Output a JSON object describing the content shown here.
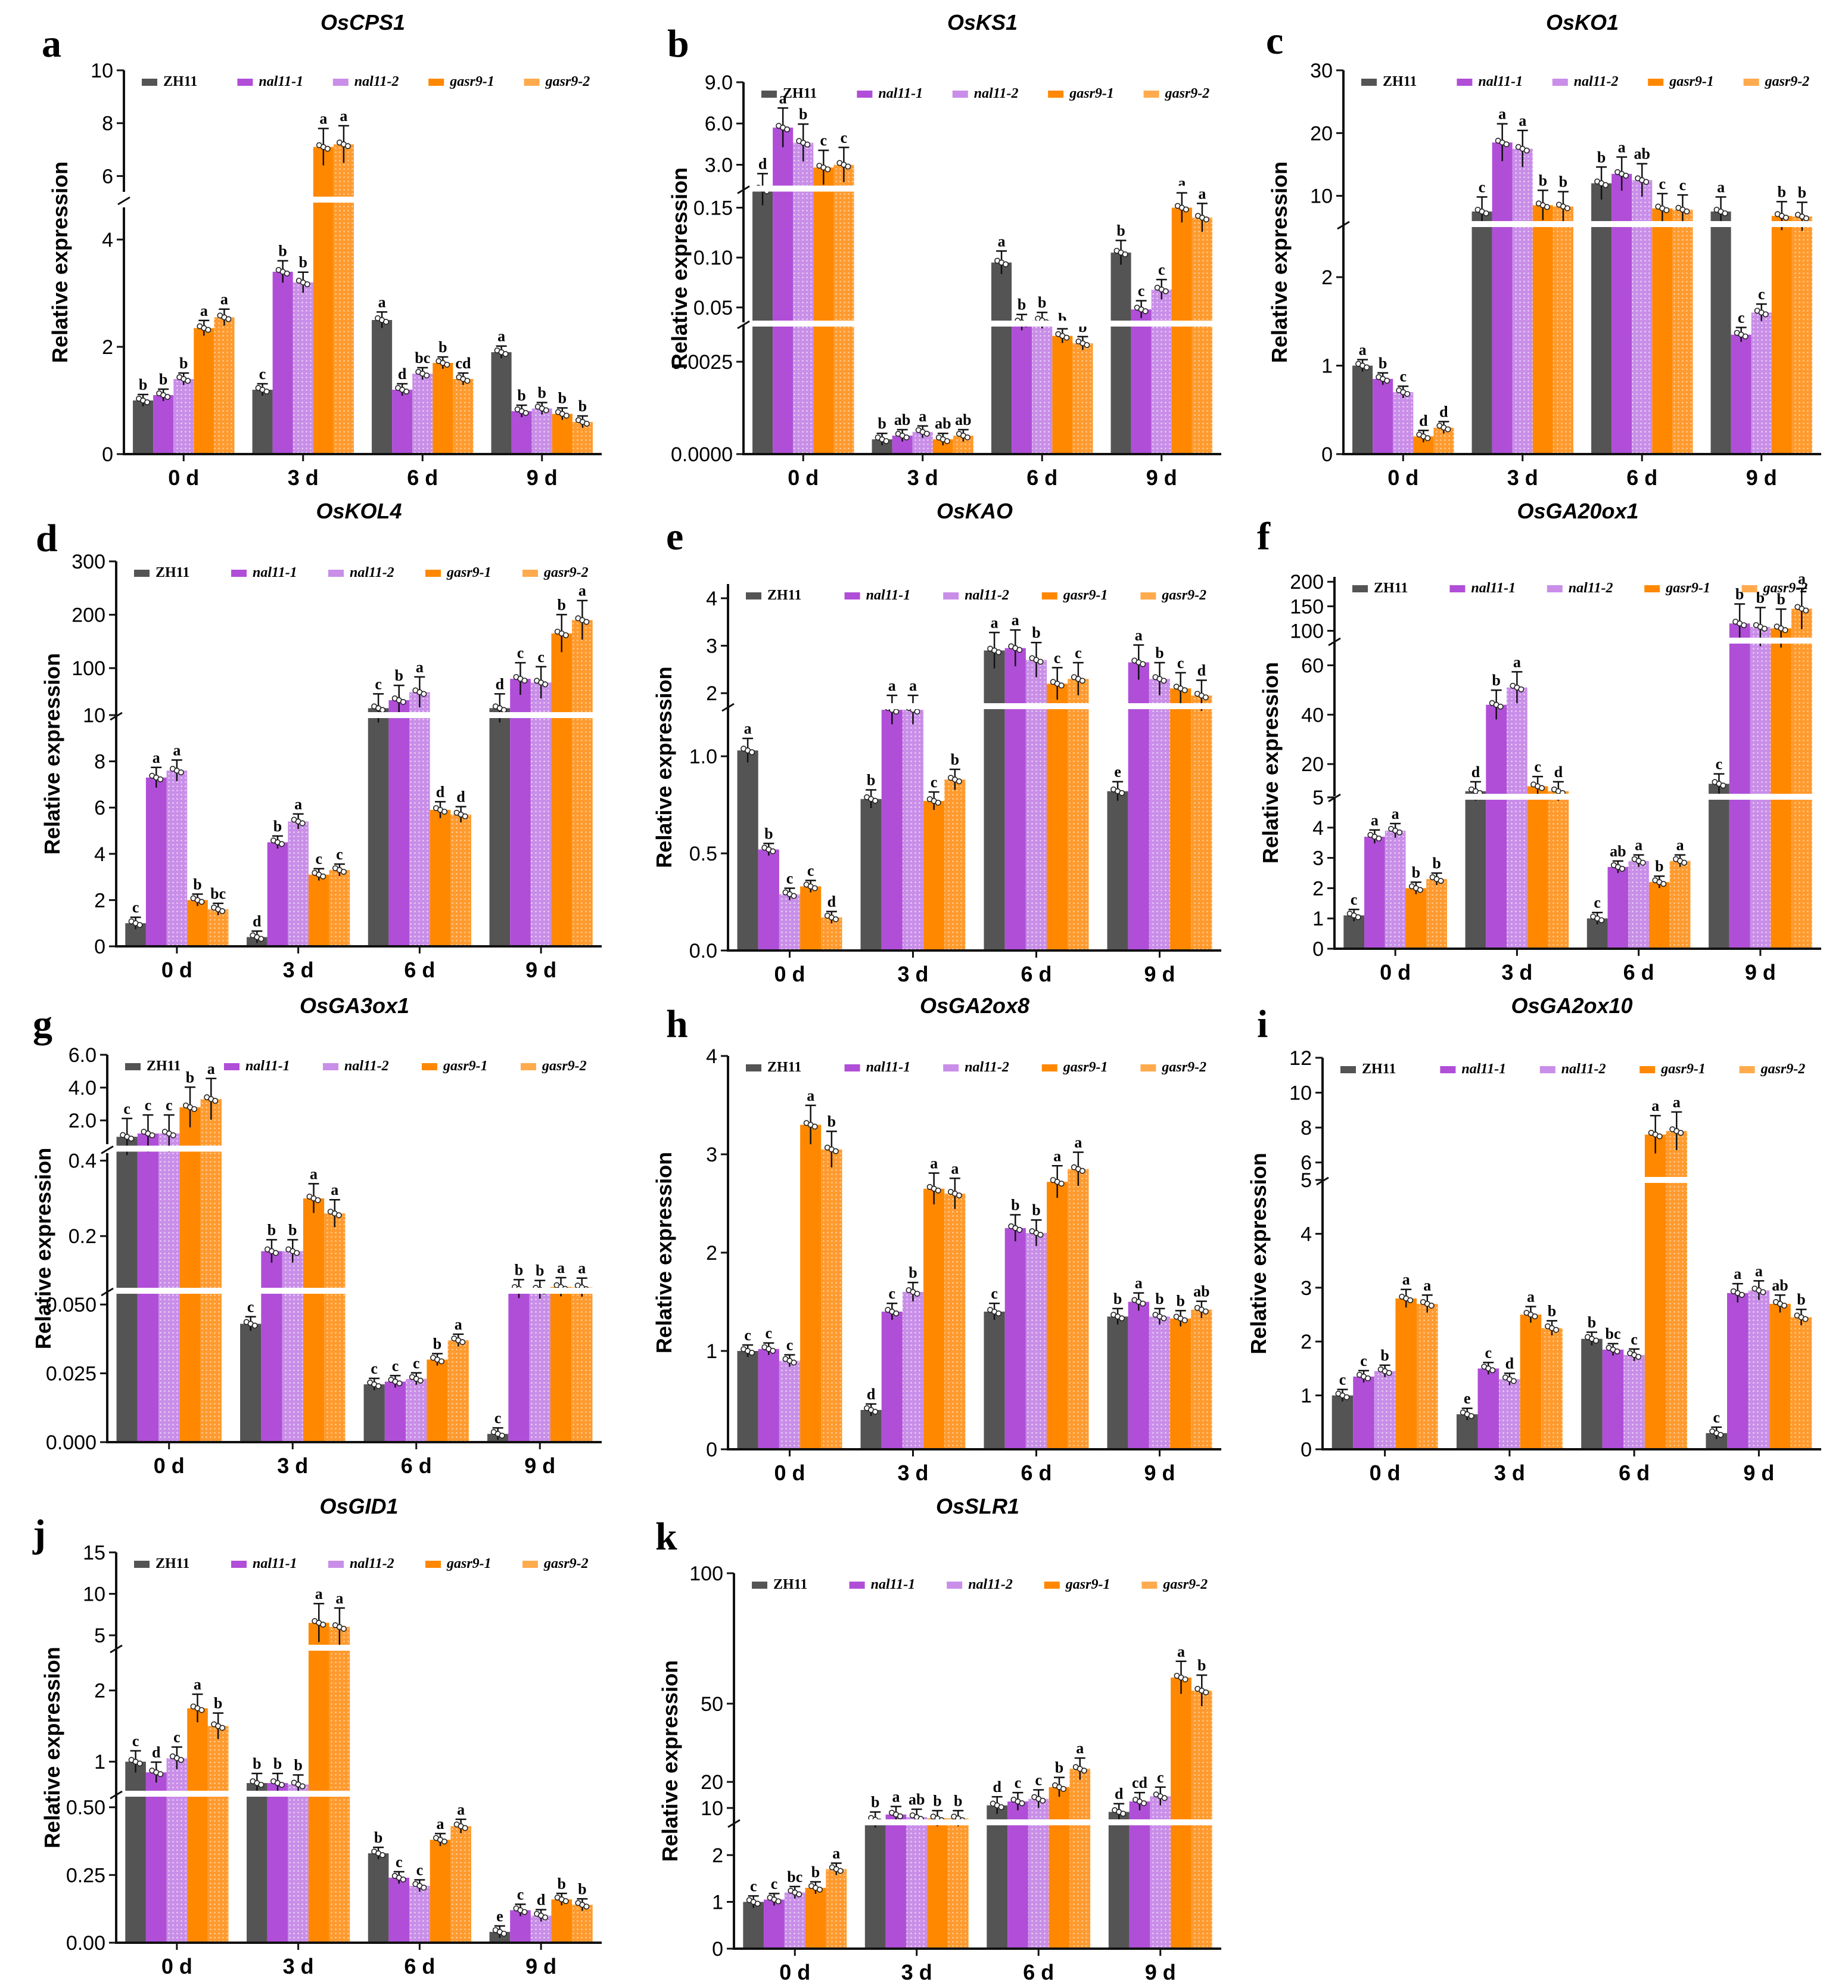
{
  "legend": [
    "ZH11",
    "nal11-1",
    "nal11-2",
    "gasr9-1",
    "gasr9-2"
  ],
  "categories": [
    "0 d",
    "3 d",
    "6 d",
    "9 d"
  ],
  "ylabel": "Relative expression",
  "colors": {
    "ZH11": "#545454",
    "nal11-1": "#b04ed8",
    "nal11-2": "#c98ee8",
    "gasr9-1": "#ff8800",
    "gasr9-2": "#ffab4d"
  },
  "chart_data": [
    {
      "letter": "a",
      "title": "OsCPS1",
      "type": "bar",
      "categories": [
        "0 d",
        "3 d",
        "6 d",
        "9 d"
      ],
      "ticks": [
        "0",
        "2",
        "4",
        "6",
        "8",
        "10"
      ],
      "series": [
        {
          "name": "ZH11",
          "values": [
            1.0,
            1.2,
            2.5,
            1.9
          ],
          "letters": [
            "b",
            "c",
            "a",
            "a"
          ]
        },
        {
          "name": "nal11-1",
          "values": [
            1.1,
            3.4,
            1.2,
            0.8
          ],
          "letters": [
            "b",
            "b",
            "d",
            "b"
          ]
        },
        {
          "name": "nal11-2",
          "values": [
            1.4,
            3.2,
            1.5,
            0.85
          ],
          "letters": [
            "b",
            "b",
            "bc",
            "b"
          ]
        },
        {
          "name": "gasr9-1",
          "values": [
            2.35,
            7.1,
            1.7,
            0.75
          ],
          "letters": [
            "a",
            "a",
            "b",
            "b"
          ]
        },
        {
          "name": "gasr9-2",
          "values": [
            2.55,
            7.2,
            1.4,
            0.6
          ],
          "letters": [
            "a",
            "a",
            "cd",
            "b"
          ]
        }
      ]
    },
    {
      "letter": "b",
      "title": "OsKS1",
      "type": "bar",
      "categories": [
        "0 d",
        "3 d",
        "6 d",
        "9 d"
      ],
      "ticks": [
        "0.0000",
        "0.0025",
        "0.05",
        "0.10",
        "0.15",
        "3.0",
        "6.0",
        "9.0"
      ],
      "series": [
        {
          "name": "ZH11",
          "values": [
            1.2,
            0.0004,
            0.095,
            0.105
          ],
          "letters": [
            "d",
            "b",
            "a",
            "b"
          ]
        },
        {
          "name": "nal11-1",
          "values": [
            5.7,
            0.0005,
            0.035,
            0.048
          ],
          "letters": [
            "a",
            "ab",
            "b",
            "c"
          ]
        },
        {
          "name": "nal11-2",
          "values": [
            4.6,
            0.0006,
            0.037,
            0.068
          ],
          "letters": [
            "b",
            "a",
            "b",
            "c"
          ]
        },
        {
          "name": "gasr9-1",
          "values": [
            2.8,
            0.0004,
            0.0032,
            0.15
          ],
          "letters": [
            "c",
            "ab",
            "b",
            "a"
          ]
        },
        {
          "name": "gasr9-2",
          "values": [
            3.0,
            0.0005,
            0.003,
            0.14
          ],
          "letters": [
            "c",
            "ab",
            "b",
            "a"
          ]
        }
      ]
    },
    {
      "letter": "c",
      "title": "OsKO1",
      "type": "bar",
      "categories": [
        "0 d",
        "3 d",
        "6 d",
        "9 d"
      ],
      "ticks": [
        "0",
        "1",
        "2",
        "10",
        "20",
        "30"
      ],
      "series": [
        {
          "name": "ZH11",
          "values": [
            1.0,
            7.5,
            12,
            7.5
          ],
          "letters": [
            "a",
            "c",
            "b",
            "a"
          ]
        },
        {
          "name": "nal11-1",
          "values": [
            0.85,
            18.5,
            13.5,
            1.35
          ],
          "letters": [
            "b",
            "a",
            "a",
            "c"
          ]
        },
        {
          "name": "nal11-2",
          "values": [
            0.7,
            17.5,
            12.5,
            1.6
          ],
          "letters": [
            "c",
            "a",
            "ab",
            "c"
          ]
        },
        {
          "name": "gasr9-1",
          "values": [
            0.2,
            8.5,
            8,
            6.8
          ],
          "letters": [
            "d",
            "b",
            "c",
            "b"
          ]
        },
        {
          "name": "gasr9-2",
          "values": [
            0.3,
            8.3,
            7.8,
            6.7
          ],
          "letters": [
            "d",
            "b",
            "c",
            "b"
          ]
        }
      ]
    },
    {
      "letter": "d",
      "title": "OsKOL4",
      "type": "bar",
      "categories": [
        "0 d",
        "3 d",
        "6 d",
        "9 d"
      ],
      "ticks": [
        "0",
        "2",
        "4",
        "6",
        "8",
        "10",
        "100",
        "200",
        "300"
      ],
      "series": [
        {
          "name": "ZH11",
          "values": [
            1.0,
            0.4,
            25,
            25
          ],
          "letters": [
            "c",
            "d",
            "c",
            "d"
          ]
        },
        {
          "name": "nal11-1",
          "values": [
            7.3,
            4.5,
            40,
            80
          ],
          "letters": [
            "a",
            "b",
            "b",
            "c"
          ]
        },
        {
          "name": "nal11-2",
          "values": [
            7.6,
            5.4,
            55,
            73
          ],
          "letters": [
            "a",
            "a",
            "a",
            "c"
          ]
        },
        {
          "name": "gasr9-1",
          "values": [
            2.0,
            3.1,
            5.9,
            165
          ],
          "letters": [
            "b",
            "c",
            "d",
            "b"
          ]
        },
        {
          "name": "gasr9-2",
          "values": [
            1.6,
            3.3,
            5.7,
            190
          ],
          "letters": [
            "bc",
            "c",
            "d",
            "a"
          ]
        }
      ]
    },
    {
      "letter": "e",
      "title": "OsKAO",
      "type": "bar",
      "categories": [
        "0 d",
        "3 d",
        "6 d",
        "9 d"
      ],
      "ticks": [
        "0.0",
        "0.5",
        "1.0",
        "2",
        "3",
        "4"
      ],
      "series": [
        {
          "name": "ZH11",
          "values": [
            1.03,
            0.78,
            2.9,
            0.82
          ],
          "letters": [
            "a",
            "b",
            "a",
            "e"
          ]
        },
        {
          "name": "nal11-1",
          "values": [
            0.52,
            1.65,
            2.95,
            2.65
          ],
          "letters": [
            "b",
            "a",
            "a",
            "a"
          ]
        },
        {
          "name": "nal11-2",
          "values": [
            0.29,
            1.65,
            2.7,
            2.3
          ],
          "letters": [
            "c",
            "a",
            "b",
            "b"
          ]
        },
        {
          "name": "gasr9-1",
          "values": [
            0.33,
            0.77,
            2.2,
            2.1
          ],
          "letters": [
            "c",
            "c",
            "c",
            "c"
          ]
        },
        {
          "name": "gasr9-2",
          "values": [
            0.17,
            0.88,
            2.3,
            1.95
          ],
          "letters": [
            "d",
            "b",
            "c",
            "d"
          ]
        }
      ]
    },
    {
      "letter": "f",
      "title": "OsGA20ox1",
      "type": "bar",
      "categories": [
        "0 d",
        "3 d",
        "6 d",
        "9 d"
      ],
      "ticks": [
        "0",
        "1",
        "2",
        "3",
        "4",
        "5",
        "20",
        "40",
        "60",
        "100",
        "150",
        "200"
      ],
      "series": [
        {
          "name": "ZH11",
          "values": [
            1.1,
            9,
            1.0,
            12
          ],
          "letters": [
            "c",
            "d",
            "c",
            "c"
          ]
        },
        {
          "name": "nal11-1",
          "values": [
            3.7,
            44,
            2.7,
            115
          ],
          "letters": [
            "a",
            "b",
            "ab",
            "b"
          ]
        },
        {
          "name": "nal11-2",
          "values": [
            3.9,
            51,
            2.9,
            108
          ],
          "letters": [
            "a",
            "a",
            "a",
            "b"
          ]
        },
        {
          "name": "gasr9-1",
          "values": [
            2.0,
            11,
            2.2,
            105
          ],
          "letters": [
            "b",
            "c",
            "b",
            "b"
          ]
        },
        {
          "name": "gasr9-2",
          "values": [
            2.3,
            9,
            2.9,
            145
          ],
          "letters": [
            "b",
            "d",
            "a",
            "a"
          ]
        }
      ]
    },
    {
      "letter": "g",
      "title": "OsGA3ox1",
      "type": "bar",
      "categories": [
        "0 d",
        "3 d",
        "6 d",
        "9 d"
      ],
      "ticks": [
        "0.000",
        "0.025",
        "0.050",
        "0.2",
        "0.4",
        "2.0",
        "4.0",
        "6.0"
      ],
      "series": [
        {
          "name": "ZH11",
          "values": [
            1.0,
            0.043,
            0.021,
            0.003
          ],
          "letters": [
            "c",
            "c",
            "c",
            "c"
          ]
        },
        {
          "name": "nal11-1",
          "values": [
            1.2,
            0.16,
            0.022,
            0.06
          ],
          "letters": [
            "c",
            "b",
            "c",
            "b"
          ]
        },
        {
          "name": "nal11-2",
          "values": [
            1.2,
            0.16,
            0.023,
            0.058
          ],
          "letters": [
            "c",
            "b",
            "c",
            "b"
          ]
        },
        {
          "name": "gasr9-1",
          "values": [
            2.8,
            0.3,
            0.03,
            0.065
          ],
          "letters": [
            "b",
            "a",
            "b",
            "a"
          ]
        },
        {
          "name": "gasr9-2",
          "values": [
            3.3,
            0.26,
            0.037,
            0.064
          ],
          "letters": [
            "a",
            "a",
            "a",
            "a"
          ]
        }
      ]
    },
    {
      "letter": "h",
      "title": "OsGA2ox8",
      "type": "bar",
      "categories": [
        "0 d",
        "3 d",
        "6 d",
        "9 d"
      ],
      "ticks": [
        "0",
        "1",
        "2",
        "3",
        "4"
      ],
      "series": [
        {
          "name": "ZH11",
          "values": [
            1.0,
            0.4,
            1.4,
            1.35
          ],
          "letters": [
            "c",
            "d",
            "c",
            "b"
          ]
        },
        {
          "name": "nal11-1",
          "values": [
            1.02,
            1.4,
            2.25,
            1.5
          ],
          "letters": [
            "c",
            "c",
            "b",
            "a"
          ]
        },
        {
          "name": "nal11-2",
          "values": [
            0.9,
            1.6,
            2.2,
            1.35
          ],
          "letters": [
            "c",
            "b",
            "b",
            "b"
          ]
        },
        {
          "name": "gasr9-1",
          "values": [
            3.3,
            2.65,
            2.72,
            1.33
          ],
          "letters": [
            "a",
            "a",
            "a",
            "b"
          ]
        },
        {
          "name": "gasr9-2",
          "values": [
            3.05,
            2.6,
            2.85,
            1.42
          ],
          "letters": [
            "b",
            "a",
            "a",
            "ab"
          ]
        }
      ]
    },
    {
      "letter": "i",
      "title": "OsGA2ox10",
      "type": "bar",
      "categories": [
        "0 d",
        "3 d",
        "6 d",
        "9 d"
      ],
      "ticks": [
        "0",
        "1",
        "2",
        "3",
        "4",
        "5",
        "6",
        "8",
        "10",
        "12"
      ],
      "series": [
        {
          "name": "ZH11",
          "values": [
            1.0,
            0.65,
            2.05,
            0.3
          ],
          "letters": [
            "c",
            "e",
            "b",
            "c"
          ]
        },
        {
          "name": "nal11-1",
          "values": [
            1.35,
            1.5,
            1.85,
            2.9
          ],
          "letters": [
            "c",
            "c",
            "bc",
            "a"
          ]
        },
        {
          "name": "nal11-2",
          "values": [
            1.45,
            1.3,
            1.75,
            2.95
          ],
          "letters": [
            "b",
            "d",
            "c",
            "a"
          ]
        },
        {
          "name": "gasr9-1",
          "values": [
            2.8,
            2.5,
            7.6,
            2.7
          ],
          "letters": [
            "a",
            "a",
            "a",
            "ab"
          ]
        },
        {
          "name": "gasr9-2",
          "values": [
            2.7,
            2.25,
            7.8,
            2.45
          ],
          "letters": [
            "a",
            "b",
            "a",
            "b"
          ]
        }
      ]
    },
    {
      "letter": "j",
      "title": "OsGID1",
      "type": "bar",
      "categories": [
        "0 d",
        "3 d",
        "6 d",
        "9 d"
      ],
      "ticks": [
        "0.00",
        "0.25",
        "0.50",
        "1",
        "2",
        "5",
        "10",
        "15"
      ],
      "series": [
        {
          "name": "ZH11",
          "values": [
            1.0,
            0.7,
            0.33,
            0.04
          ],
          "letters": [
            "c",
            "b",
            "b",
            "e"
          ]
        },
        {
          "name": "nal11-1",
          "values": [
            0.85,
            0.7,
            0.24,
            0.12
          ],
          "letters": [
            "d",
            "b",
            "c",
            "c"
          ]
        },
        {
          "name": "nal11-2",
          "values": [
            1.05,
            0.68,
            0.21,
            0.1
          ],
          "letters": [
            "c",
            "b",
            "c",
            "d"
          ]
        },
        {
          "name": "gasr9-1",
          "values": [
            1.75,
            6.5,
            0.38,
            0.16
          ],
          "letters": [
            "a",
            "a",
            "a",
            "b"
          ]
        },
        {
          "name": "gasr9-2",
          "values": [
            1.5,
            6.0,
            0.43,
            0.14
          ],
          "letters": [
            "b",
            "a",
            "a",
            "b"
          ]
        }
      ]
    },
    {
      "letter": "k",
      "title": "OsSLR1",
      "type": "bar",
      "categories": [
        "0 d",
        "3 d",
        "6 d",
        "9 d"
      ],
      "ticks": [
        "0",
        "1",
        "2",
        "10",
        "20",
        "50",
        "100"
      ],
      "series": [
        {
          "name": "ZH11",
          "values": [
            1.0,
            5.5,
            11,
            8.5
          ],
          "letters": [
            "c",
            "b",
            "d",
            "d"
          ]
        },
        {
          "name": "nal11-1",
          "values": [
            1.05,
            7.5,
            12.5,
            12.5
          ],
          "letters": [
            "c",
            "a",
            "c",
            "cd"
          ]
        },
        {
          "name": "nal11-2",
          "values": [
            1.2,
            6.5,
            13.5,
            14.5
          ],
          "letters": [
            "bc",
            "ab",
            "c",
            "c"
          ]
        },
        {
          "name": "gasr9-1",
          "values": [
            1.3,
            6.0,
            18,
            60
          ],
          "letters": [
            "b",
            "b",
            "b",
            "a"
          ]
        },
        {
          "name": "gasr9-2",
          "values": [
            1.7,
            6.0,
            25,
            55
          ],
          "letters": [
            "a",
            "b",
            "a",
            "b"
          ]
        }
      ]
    }
  ]
}
